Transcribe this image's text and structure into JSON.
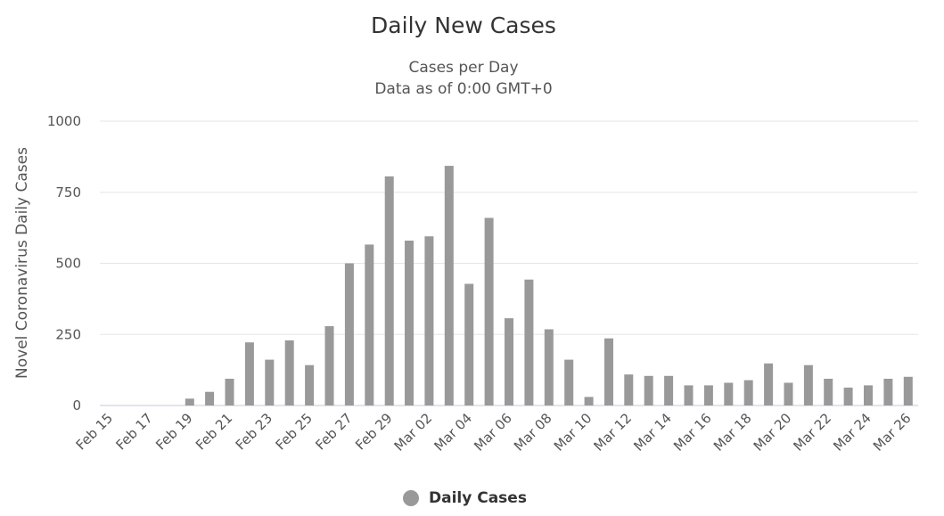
{
  "chart_data": {
    "type": "bar",
    "title": "Daily New Cases",
    "subtitle": [
      "Cases per Day",
      "Data as of 0:00 GMT+0"
    ],
    "ylabel": "Novel Coronavirus Daily Cases",
    "xlabel": "",
    "ylim": [
      0,
      1000
    ],
    "yticks": [
      "0",
      "250",
      "500",
      "750",
      "1000"
    ],
    "grid": true,
    "legend_position": "bottom-center",
    "bar_color": "#999999",
    "categories": [
      "Feb 15",
      "Feb 16",
      "Feb 17",
      "Feb 18",
      "Feb 19",
      "Feb 20",
      "Feb 21",
      "Feb 22",
      "Feb 23",
      "Feb 24",
      "Feb 25",
      "Feb 26",
      "Feb 27",
      "Feb 28",
      "Feb 29",
      "Mar 01",
      "Mar 02",
      "Mar 03",
      "Mar 04",
      "Mar 05",
      "Mar 06",
      "Mar 07",
      "Mar 08",
      "Mar 09",
      "Mar 10",
      "Mar 11",
      "Mar 12",
      "Mar 13",
      "Mar 14",
      "Mar 15",
      "Mar 16",
      "Mar 17",
      "Mar 18",
      "Mar 19",
      "Mar 20",
      "Mar 21",
      "Mar 22",
      "Mar 23",
      "Mar 24",
      "Mar 25",
      "Mar 26"
    ],
    "xtick_labels": [
      "Feb 15",
      "Feb 17",
      "Feb 19",
      "Feb 21",
      "Feb 23",
      "Feb 25",
      "Feb 27",
      "Feb 29",
      "Mar 02",
      "Mar 04",
      "Mar 06",
      "Mar 08",
      "Mar 10",
      "Mar 12",
      "Mar 14",
      "Mar 16",
      "Mar 18",
      "Mar 20",
      "Mar 22",
      "Mar 24",
      "Mar 26"
    ],
    "series": [
      {
        "name": "Daily Cases",
        "values": [
          0,
          0,
          0,
          0,
          24,
          48,
          94,
          222,
          161,
          229,
          142,
          279,
          500,
          566,
          806,
          580,
          595,
          843,
          428,
          660,
          307,
          443,
          268,
          161,
          30,
          236,
          109,
          104,
          104,
          71,
          71,
          80,
          89,
          148,
          80,
          142,
          94,
          63,
          71,
          94,
          101
        ]
      }
    ]
  }
}
